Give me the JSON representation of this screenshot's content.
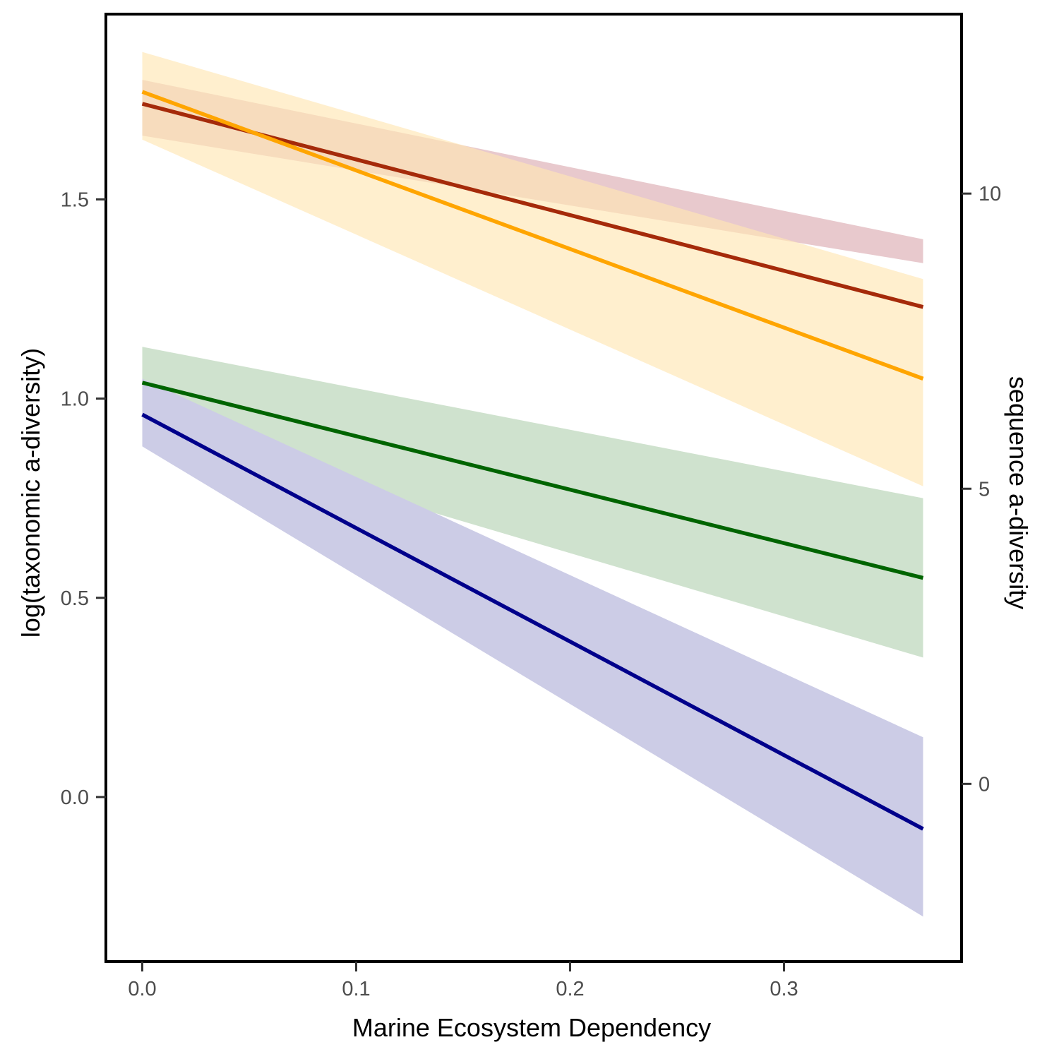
{
  "chart_data": {
    "type": "line",
    "xlabel": "Marine Ecosystem Dependency",
    "ylabel": "log(taxonomic a-diversity)",
    "y2label": "sequence a-diversity",
    "xlim": [
      -0.017,
      0.383
    ],
    "ylim": [
      -0.413,
      1.965
    ],
    "y2lim": [
      -3.01,
      13.04
    ],
    "x_ticks": [
      "0.0",
      "0.1",
      "0.2",
      "0.3"
    ],
    "x_tick_values": [
      0.0,
      0.1,
      0.2,
      0.3
    ],
    "y_ticks": [
      "0.0",
      "0.5",
      "1.0",
      "1.5"
    ],
    "y_tick_values": [
      0.0,
      0.5,
      1.0,
      1.5
    ],
    "y2_ticks": [
      "0",
      "5",
      "10"
    ],
    "y2_tick_values": [
      0,
      5,
      10
    ],
    "grid": false,
    "legend": "none",
    "x_range": [
      0.0,
      0.365
    ],
    "series": [
      {
        "color": "#e8c9cd",
        "line_color": "#a52a0a",
        "band_opacity": 1,
        "fit": [
          1.74,
          1.23
        ],
        "lower": [
          1.66,
          1.34
        ],
        "upper": [
          1.8,
          1.4
        ]
      },
      {
        "color": "#ffe6b3",
        "line_color": "#ffa500",
        "band_opacity": 0.65,
        "fit": [
          1.77,
          1.05
        ],
        "lower": [
          1.65,
          0.78
        ],
        "upper": [
          1.87,
          1.3
        ]
      },
      {
        "color": "#cfe2ce",
        "line_color": "#006400",
        "band_opacity": 1,
        "fit": [
          1.04,
          0.55
        ],
        "lower": [
          0.93,
          0.35
        ],
        "upper": [
          1.13,
          0.75
        ]
      },
      {
        "color": "#cccce6",
        "line_color": "#00008b",
        "band_opacity": 1,
        "fit": [
          0.96,
          -0.08
        ],
        "lower": [
          0.88,
          -0.3
        ],
        "upper": [
          1.05,
          0.15
        ]
      }
    ]
  }
}
